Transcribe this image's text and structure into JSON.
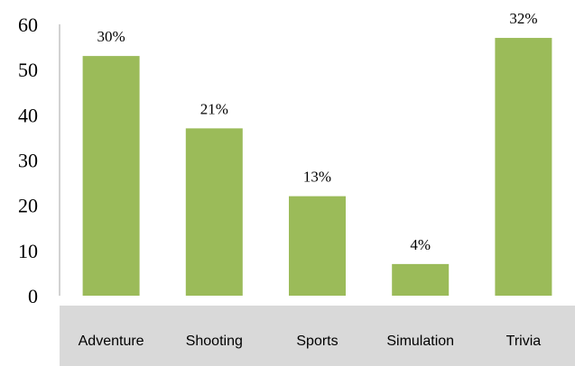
{
  "chart_data": {
    "type": "bar",
    "categories": [
      "Adventure",
      "Shooting",
      "Sports",
      "Simulation",
      "Trivia"
    ],
    "values": [
      53,
      37,
      22,
      7,
      57
    ],
    "data_labels": [
      "30%",
      "21%",
      "13%",
      "4%",
      "32%"
    ],
    "y_ticks": [
      "0",
      "10",
      "20",
      "30",
      "40",
      "50",
      "60"
    ],
    "ylim": [
      0,
      60
    ],
    "grid": false,
    "bar_color": "#9bbb59",
    "category_band_color": "#d9d9d9",
    "axis_color": "#a6a6a6"
  }
}
